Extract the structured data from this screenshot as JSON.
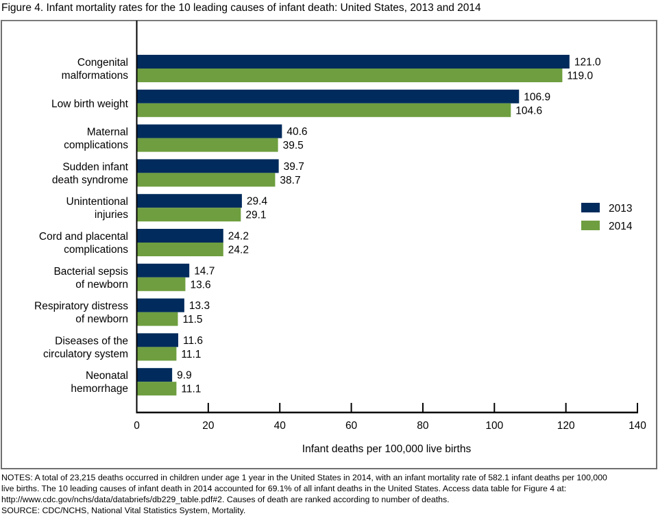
{
  "figure_title": "Figure 4. Infant mortality rates for the 10 leading causes of infant death: United States, 2013 and 2014",
  "notes": [
    "NOTES: A total of 23,215 deaths occurred in children under age 1 year in the United States in 2014, with an infant mortality rate of 582.1 infant deaths per 100,000",
    "live births. The 10 leading causes of infant death in 2014 accounted for 69.1% of all infant deaths in the United States. Access data table for Figure 4 at:",
    "http://www.cdc.gov/nchs/data/databriefs/db229_table.pdf#2. Causes of death are ranked according to number of deaths.",
    "SOURCE: CDC/NCHS, National Vital Statistics System, Mortality."
  ],
  "colors": {
    "2013": "#002B5C",
    "2014": "#6E9E3F"
  },
  "chart_data": {
    "type": "bar",
    "orientation": "horizontal",
    "title": "Figure 4. Infant mortality rates for the 10 leading causes of infant death: United States, 2013 and 2014",
    "xlabel": "Infant deaths per 100,000 live births",
    "ylabel": "",
    "xlim": [
      0,
      140
    ],
    "xticks": [
      0,
      20,
      40,
      60,
      80,
      100,
      120,
      140
    ],
    "grid": false,
    "legend_position": "right",
    "categories": [
      [
        "Congenital",
        "malformations"
      ],
      [
        "Low birth weight"
      ],
      [
        "Maternal",
        "complications"
      ],
      [
        "Sudden infant",
        "death syndrome"
      ],
      [
        "Unintentional",
        "injuries"
      ],
      [
        "Cord and placental",
        "complications"
      ],
      [
        "Bacterial sepsis",
        "of newborn"
      ],
      [
        "Respiratory distress",
        "of newborn"
      ],
      [
        "Diseases of the",
        "circulatory system"
      ],
      [
        "Neonatal",
        "hemorrhage"
      ]
    ],
    "series": [
      {
        "name": "2013",
        "values": [
          121.0,
          106.9,
          40.6,
          39.7,
          29.4,
          24.2,
          14.7,
          13.3,
          11.6,
          9.9
        ],
        "labels": [
          "121.0",
          "106.9",
          "40.6",
          "39.7",
          "29.4",
          "24.2",
          "14.7",
          "13.3",
          "11.6",
          "9.9"
        ]
      },
      {
        "name": "2014",
        "values": [
          119.0,
          104.6,
          39.5,
          38.7,
          29.1,
          24.2,
          13.6,
          11.5,
          11.1,
          11.1
        ],
        "labels": [
          "119.0",
          "104.6",
          "39.5",
          "38.7",
          "29.1",
          "24.2",
          "13.6",
          "11.5",
          "11.1",
          "11.1"
        ]
      }
    ]
  }
}
